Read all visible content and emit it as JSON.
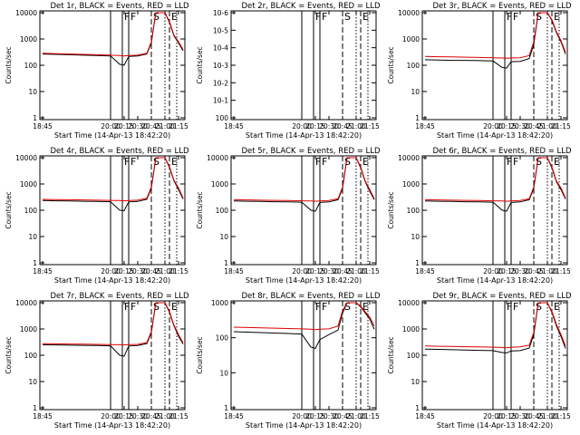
{
  "chart_data": {
    "type": "line",
    "layout": "3x3 grid of panels",
    "shared": {
      "xlabel": "Start Time (14-Apr-13 18:42:20)",
      "ylabel": "Counts/sec",
      "xtick_labels": [
        "18:45",
        "20:00",
        "20:15",
        "20:30",
        "20:45",
        "21:00",
        "21:15"
      ],
      "y_scale": "log",
      "legend_words": {
        "black": "BLACK = Events",
        "red": "RED = LLD"
      },
      "series_colors": {
        "events": "#000000",
        "lld": "#dd0000"
      },
      "x_points": [
        "18:45",
        "19:00",
        "19:15",
        "19:30",
        "19:45",
        "20:00",
        "20:10",
        "20:15",
        "20:20",
        "20:30",
        "20:40",
        "20:45",
        "20:50",
        "21:00",
        "21:05",
        "21:10",
        "21:15",
        "21:20"
      ],
      "segment_markers": [
        {
          "time": "20:00",
          "style": "solid",
          "label": ""
        },
        {
          "time": "20:13",
          "style": "solid",
          "label": "F"
        },
        {
          "time": "20:20",
          "style": "solid",
          "label": "F"
        },
        {
          "time": "20:45",
          "style": "dashed",
          "label": "S"
        },
        {
          "time": "21:00",
          "style": "dotted",
          "label": ""
        },
        {
          "time": "21:05",
          "style": "dashed",
          "label": "E"
        },
        {
          "time": "21:13",
          "style": "dotted",
          "label": ""
        }
      ]
    },
    "panels": [
      {
        "title": "Det 1r, BLACK = Events, RED = LLD",
        "ytick_labels": [
          "1",
          "10",
          "100",
          "1000",
          "10000"
        ],
        "ylim": [
          1,
          12000
        ],
        "series": [
          {
            "name": "Events",
            "values": [
              300,
              290,
              280,
              270,
              260,
              250,
              120,
              110,
              240,
              250,
              300,
              800,
              12000,
              12000,
              5000,
              1500,
              800,
              400
            ]
          },
          {
            "name": "LLD",
            "values": [
              320,
              310,
              300,
              290,
              280,
              270,
              260,
              250,
              260,
              270,
              320,
              900,
              12000,
              12000,
              5500,
              1600,
              900,
              450
            ]
          }
        ]
      },
      {
        "title": "Det 2r, BLACK = Events, RED = LLD",
        "ytick_labels": [
          "10^0",
          "10^-1",
          "10^-2",
          "10^-3",
          "10^-4",
          "10^-5",
          "10^-6"
        ],
        "ylim_description": "empty panel, no data",
        "series": []
      },
      {
        "title": "Det 3r, BLACK = Events, RED = LLD",
        "ytick_labels": [
          "1",
          "10",
          "100",
          "1000",
          "10000"
        ],
        "ylim": [
          1,
          12000
        ],
        "series": [
          {
            "name": "Events",
            "values": [
              180,
              175,
              170,
              170,
              165,
              160,
              90,
              85,
              150,
              155,
              200,
              700,
              12000,
              12000,
              6000,
              2000,
              900,
              300
            ]
          },
          {
            "name": "LLD",
            "values": [
              240,
              235,
              230,
              225,
              220,
              215,
              210,
              205,
              210,
              215,
              260,
              900,
              12000,
              12000,
              6500,
              2200,
              1000,
              350
            ]
          }
        ]
      },
      {
        "title": "Det 4r, BLACK = Events, RED = LLD",
        "ytick_labels": [
          "1",
          "10",
          "100",
          "1000",
          "10000"
        ],
        "ylim": [
          1,
          12000
        ],
        "series": [
          {
            "name": "Events",
            "values": [
              260,
              255,
              250,
              245,
              240,
              235,
              110,
              105,
              230,
              240,
              290,
              800,
              12000,
              12000,
              5000,
              1500,
              700,
              300
            ]
          },
          {
            "name": "LLD",
            "values": [
              290,
              285,
              280,
              275,
              270,
              265,
              260,
              255,
              262,
              270,
              320,
              900,
              12000,
              12000,
              5500,
              1600,
              800,
              330
            ]
          }
        ]
      },
      {
        "title": "Det 5r, BLACK = Events, RED = LLD",
        "ytick_labels": [
          "1",
          "10",
          "100",
          "1000",
          "10000"
        ],
        "ylim": [
          1,
          12000
        ],
        "series": [
          {
            "name": "Events",
            "values": [
              250,
              245,
              240,
              235,
              230,
              225,
              110,
              100,
              220,
              230,
              280,
              780,
              12000,
              12000,
              4800,
              1400,
              600,
              280
            ]
          },
          {
            "name": "LLD",
            "values": [
              280,
              275,
              270,
              265,
              260,
              255,
              250,
              245,
              252,
              260,
              310,
              880,
              12000,
              12000,
              5300,
              1500,
              700,
              310
            ]
          }
        ]
      },
      {
        "title": "Det 6r, BLACK = Events, RED = LLD",
        "ytick_labels": [
          "1",
          "10",
          "100",
          "1000",
          "10000"
        ],
        "ylim": [
          1,
          12000
        ],
        "series": [
          {
            "name": "Events",
            "values": [
              250,
              245,
              240,
              235,
              230,
              225,
              110,
              100,
              220,
              230,
              280,
              780,
              12000,
              12000,
              4800,
              1400,
              700,
              300
            ]
          },
          {
            "name": "LLD",
            "values": [
              280,
              275,
              270,
              265,
              260,
              255,
              250,
              245,
              252,
              260,
              310,
              880,
              12000,
              12000,
              5300,
              1500,
              800,
              330
            ]
          }
        ]
      },
      {
        "title": "Det 7r, BLACK = Events, RED = LLD",
        "ytick_labels": [
          "1",
          "10",
          "100",
          "1000",
          "10000"
        ],
        "ylim": [
          1,
          12000
        ],
        "series": [
          {
            "name": "Events",
            "values": [
              280,
              275,
              270,
              265,
              260,
              255,
              110,
              100,
              250,
              260,
              310,
              820,
              12000,
              12000,
              5000,
              1500,
              600,
              300
            ]
          },
          {
            "name": "LLD",
            "values": [
              310,
              305,
              300,
              295,
              290,
              285,
              280,
              275,
              282,
              290,
              340,
              920,
              12000,
              12000,
              5500,
              1600,
              700,
              330
            ]
          }
        ]
      },
      {
        "title": "Det 8r, BLACK = Events, RED = LLD",
        "ytick_labels": [
          "1",
          "10",
          "100",
          "1000"
        ],
        "ylim": [
          1,
          1200
        ],
        "series": [
          {
            "name": "Events",
            "values": [
              170,
              165,
              160,
              155,
              150,
              145,
              60,
              55,
              100,
              140,
              190,
              600,
              1200,
              1200,
              900,
              600,
              400,
              200
            ]
          },
          {
            "name": "LLD",
            "values": [
              230,
              225,
              220,
              215,
              210,
              205,
              200,
              195,
              200,
              205,
              250,
              700,
              1200,
              1200,
              950,
              650,
              450,
              250
            ]
          }
        ]
      },
      {
        "title": "Det 9r, BLACK = Events, RED = LLD",
        "ytick_labels": [
          "1",
          "10",
          "100",
          "1000",
          "10000"
        ],
        "ylim": [
          1,
          12000
        ],
        "series": [
          {
            "name": "Events",
            "values": [
              190,
              185,
              180,
              175,
              170,
              165,
              140,
              135,
              160,
              165,
              210,
              700,
              12000,
              12000,
              5000,
              1500,
              600,
              200
            ]
          },
          {
            "name": "LLD",
            "values": [
              250,
              245,
              240,
              235,
              230,
              225,
              220,
              215,
              222,
              230,
              270,
              850,
              12000,
              12000,
              5500,
              1700,
              700,
              250
            ]
          }
        ]
      }
    ]
  }
}
